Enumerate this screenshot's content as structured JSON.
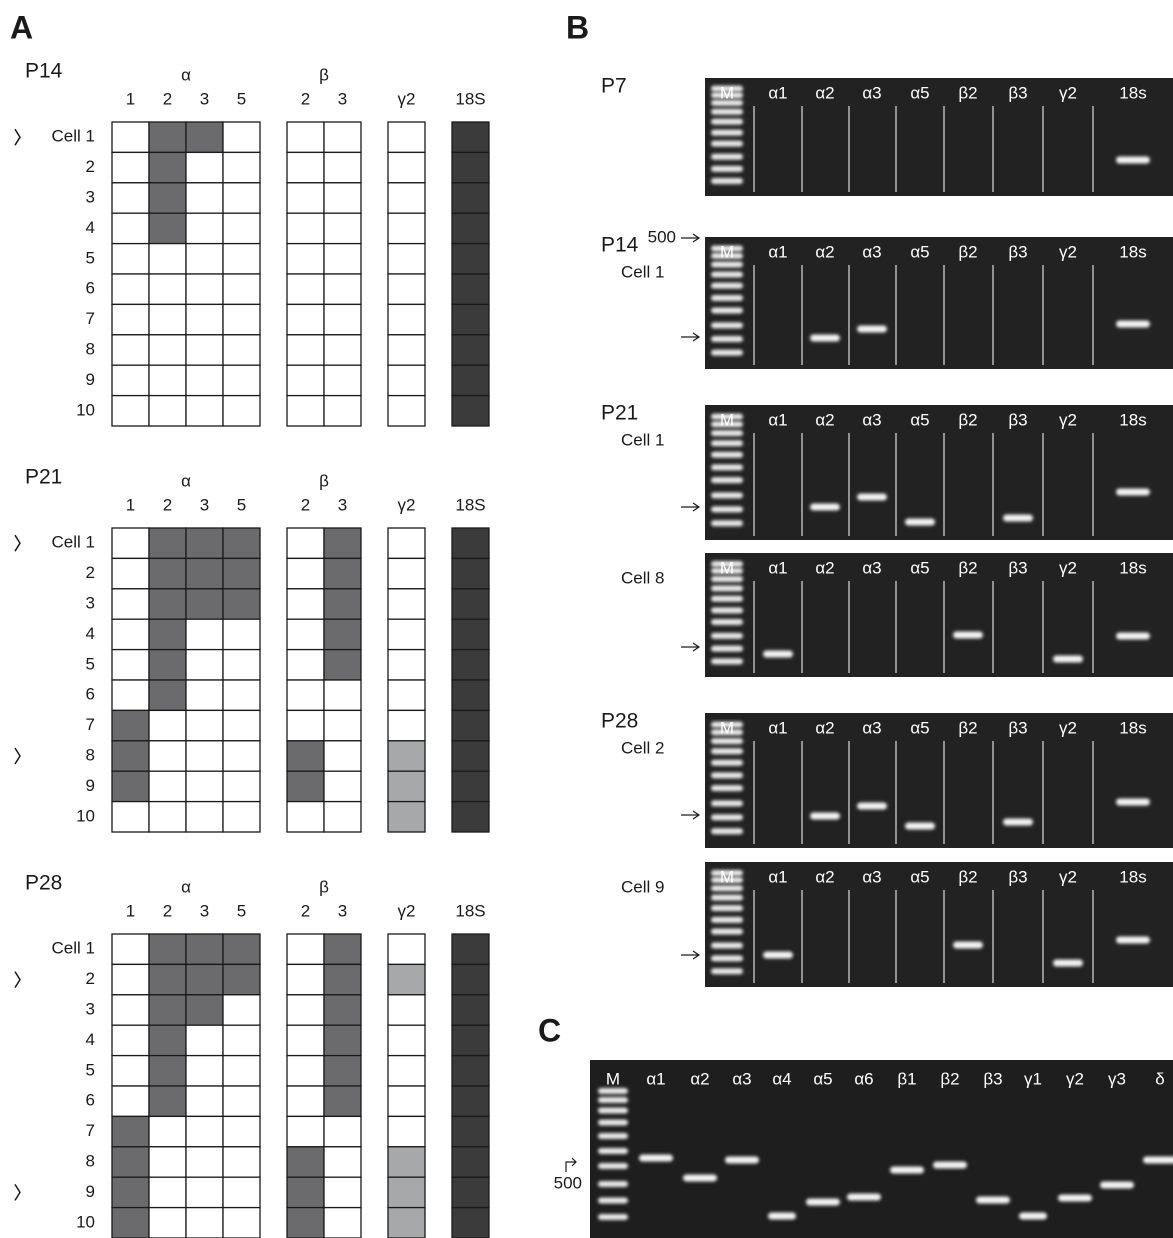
{
  "panel_labels": [
    "A",
    "B",
    "C"
  ],
  "panel_a": [
    {
      "title": "P14",
      "groups": [
        {
          "label": "α",
          "color": "#6b6b6d",
          "columns": [
            {
              "label": "1",
              "cells": [
                0,
                0,
                0,
                0,
                0,
                0,
                0,
                0,
                0,
                0
              ]
            },
            {
              "label": "2",
              "cells": [
                1,
                1,
                1,
                1,
                0,
                0,
                0,
                0,
                0,
                0
              ]
            },
            {
              "label": "3",
              "cells": [
                1,
                0,
                0,
                0,
                0,
                0,
                0,
                0,
                0,
                0
              ]
            },
            {
              "label": "5",
              "cells": [
                0,
                0,
                0,
                0,
                0,
                0,
                0,
                0,
                0,
                0
              ]
            }
          ]
        },
        {
          "label": "β",
          "color": "#6b6b6d",
          "columns": [
            {
              "label": "2",
              "cells": [
                0,
                0,
                0,
                0,
                0,
                0,
                0,
                0,
                0,
                0
              ]
            },
            {
              "label": "3",
              "cells": [
                0,
                0,
                0,
                0,
                0,
                0,
                0,
                0,
                0,
                0
              ]
            }
          ]
        },
        {
          "label": "γ2",
          "color": "#a7a8aa",
          "columns": [
            {
              "cells": [
                0,
                0,
                0,
                0,
                0,
                0,
                0,
                0,
                0,
                0
              ]
            }
          ]
        },
        {
          "label": "18S",
          "color": "#3b3b3b",
          "columns": [
            {
              "cells": [
                1,
                1,
                1,
                1,
                1,
                1,
                1,
                1,
                1,
                1
              ]
            }
          ]
        }
      ],
      "rows": [
        {
          "label": "Cell 1",
          "marked": true
        },
        {
          "label": "2"
        },
        {
          "label": "3"
        },
        {
          "label": "4"
        },
        {
          "label": "5"
        },
        {
          "label": "6"
        },
        {
          "label": "7"
        },
        {
          "label": "8"
        },
        {
          "label": "9"
        },
        {
          "label": "10"
        }
      ]
    },
    {
      "title": "P21",
      "groups": [
        {
          "label": "α",
          "color": "#6b6b6d",
          "columns": [
            {
              "label": "1",
              "cells": [
                0,
                0,
                0,
                0,
                0,
                0,
                1,
                1,
                1,
                0
              ]
            },
            {
              "label": "2",
              "cells": [
                1,
                1,
                1,
                1,
                1,
                1,
                0,
                0,
                0,
                0
              ]
            },
            {
              "label": "3",
              "cells": [
                1,
                1,
                1,
                0,
                0,
                0,
                0,
                0,
                0,
                0
              ]
            },
            {
              "label": "5",
              "cells": [
                1,
                1,
                1,
                0,
                0,
                0,
                0,
                0,
                0,
                0
              ]
            }
          ]
        },
        {
          "label": "β",
          "color": "#6b6b6d",
          "columns": [
            {
              "label": "2",
              "cells": [
                0,
                0,
                0,
                0,
                0,
                0,
                0,
                1,
                1,
                0
              ]
            },
            {
              "label": "3",
              "cells": [
                1,
                1,
                1,
                1,
                1,
                0,
                0,
                0,
                0,
                0
              ]
            }
          ]
        },
        {
          "label": "γ2",
          "color": "#a7a8aa",
          "columns": [
            {
              "cells": [
                0,
                0,
                0,
                0,
                0,
                0,
                0,
                1,
                1,
                1
              ]
            }
          ]
        },
        {
          "label": "18S",
          "color": "#3b3b3b",
          "columns": [
            {
              "cells": [
                1,
                1,
                1,
                1,
                1,
                1,
                1,
                1,
                1,
                1
              ]
            }
          ]
        }
      ],
      "rows": [
        {
          "label": "Cell 1",
          "marked": true
        },
        {
          "label": "2"
        },
        {
          "label": "3"
        },
        {
          "label": "4"
        },
        {
          "label": "5"
        },
        {
          "label": "6"
        },
        {
          "label": "7"
        },
        {
          "label": "8",
          "marked": true
        },
        {
          "label": "9"
        },
        {
          "label": "10"
        }
      ]
    },
    {
      "title": "P28",
      "groups": [
        {
          "label": "α",
          "color": "#6b6b6d",
          "columns": [
            {
              "label": "1",
              "cells": [
                0,
                0,
                0,
                0,
                0,
                0,
                1,
                1,
                1,
                1
              ]
            },
            {
              "label": "2",
              "cells": [
                1,
                1,
                1,
                1,
                1,
                1,
                0,
                0,
                0,
                0
              ]
            },
            {
              "label": "3",
              "cells": [
                1,
                1,
                1,
                0,
                0,
                0,
                0,
                0,
                0,
                0
              ]
            },
            {
              "label": "5",
              "cells": [
                1,
                1,
                0,
                0,
                0,
                0,
                0,
                0,
                0,
                0
              ]
            }
          ]
        },
        {
          "label": "β",
          "color": "#6b6b6d",
          "columns": [
            {
              "label": "2",
              "cells": [
                0,
                0,
                0,
                0,
                0,
                0,
                0,
                1,
                1,
                1
              ]
            },
            {
              "label": "3",
              "cells": [
                1,
                1,
                1,
                1,
                1,
                1,
                0,
                0,
                0,
                0
              ]
            }
          ]
        },
        {
          "label": "γ2",
          "color": "#a7a8aa",
          "columns": [
            {
              "cells": [
                0,
                1,
                0,
                0,
                0,
                0,
                0,
                1,
                1,
                1
              ]
            }
          ]
        },
        {
          "label": "18S",
          "color": "#3b3b3b",
          "columns": [
            {
              "cells": [
                1,
                1,
                1,
                1,
                1,
                1,
                1,
                1,
                1,
                1
              ]
            }
          ]
        }
      ],
      "rows": [
        {
          "label": "Cell 1"
        },
        {
          "label": "2",
          "marked": true
        },
        {
          "label": "3"
        },
        {
          "label": "4"
        },
        {
          "label": "5"
        },
        {
          "label": "6"
        },
        {
          "label": "7"
        },
        {
          "label": "8"
        },
        {
          "label": "9",
          "marked": true
        },
        {
          "label": "10"
        }
      ]
    }
  ],
  "panel_b": [
    {
      "title": "P7",
      "size_label": "500",
      "lanes": [
        "M",
        "α1",
        "α2",
        "α3",
        "α5",
        "β2",
        "β3",
        "γ2",
        "18s"
      ]
    },
    {
      "title": "P14",
      "subtitle": "Cell 1",
      "lanes": [
        "M",
        "α1",
        "α2",
        "α3",
        "α5",
        "β2",
        "β3",
        "γ2",
        "18s"
      ]
    },
    {
      "title": "P21",
      "subtitle": "Cell 1",
      "lanes": [
        "M",
        "α1",
        "α2",
        "α3",
        "α5",
        "β2",
        "β3",
        "γ2",
        "18s"
      ]
    },
    {
      "subtitle": "Cell 8",
      "lanes": [
        "M",
        "α1",
        "α2",
        "α3",
        "α5",
        "β2",
        "β3",
        "γ2",
        "18s"
      ]
    },
    {
      "title": "P28",
      "subtitle": "Cell 2",
      "lanes": [
        "M",
        "α1",
        "α2",
        "α3",
        "α5",
        "β2",
        "β3",
        "γ2",
        "18s"
      ]
    },
    {
      "subtitle": "Cell 9",
      "lanes": [
        "M",
        "α1",
        "α2",
        "α3",
        "α5",
        "β2",
        "β3",
        "γ2",
        "18s"
      ]
    }
  ],
  "panel_c": {
    "size_label": "500",
    "lanes": [
      "M",
      "α1",
      "α2",
      "α3",
      "α4",
      "α5",
      "α6",
      "β1",
      "β2",
      "β3",
      "γ1",
      "γ2",
      "γ3",
      "δ"
    ]
  }
}
